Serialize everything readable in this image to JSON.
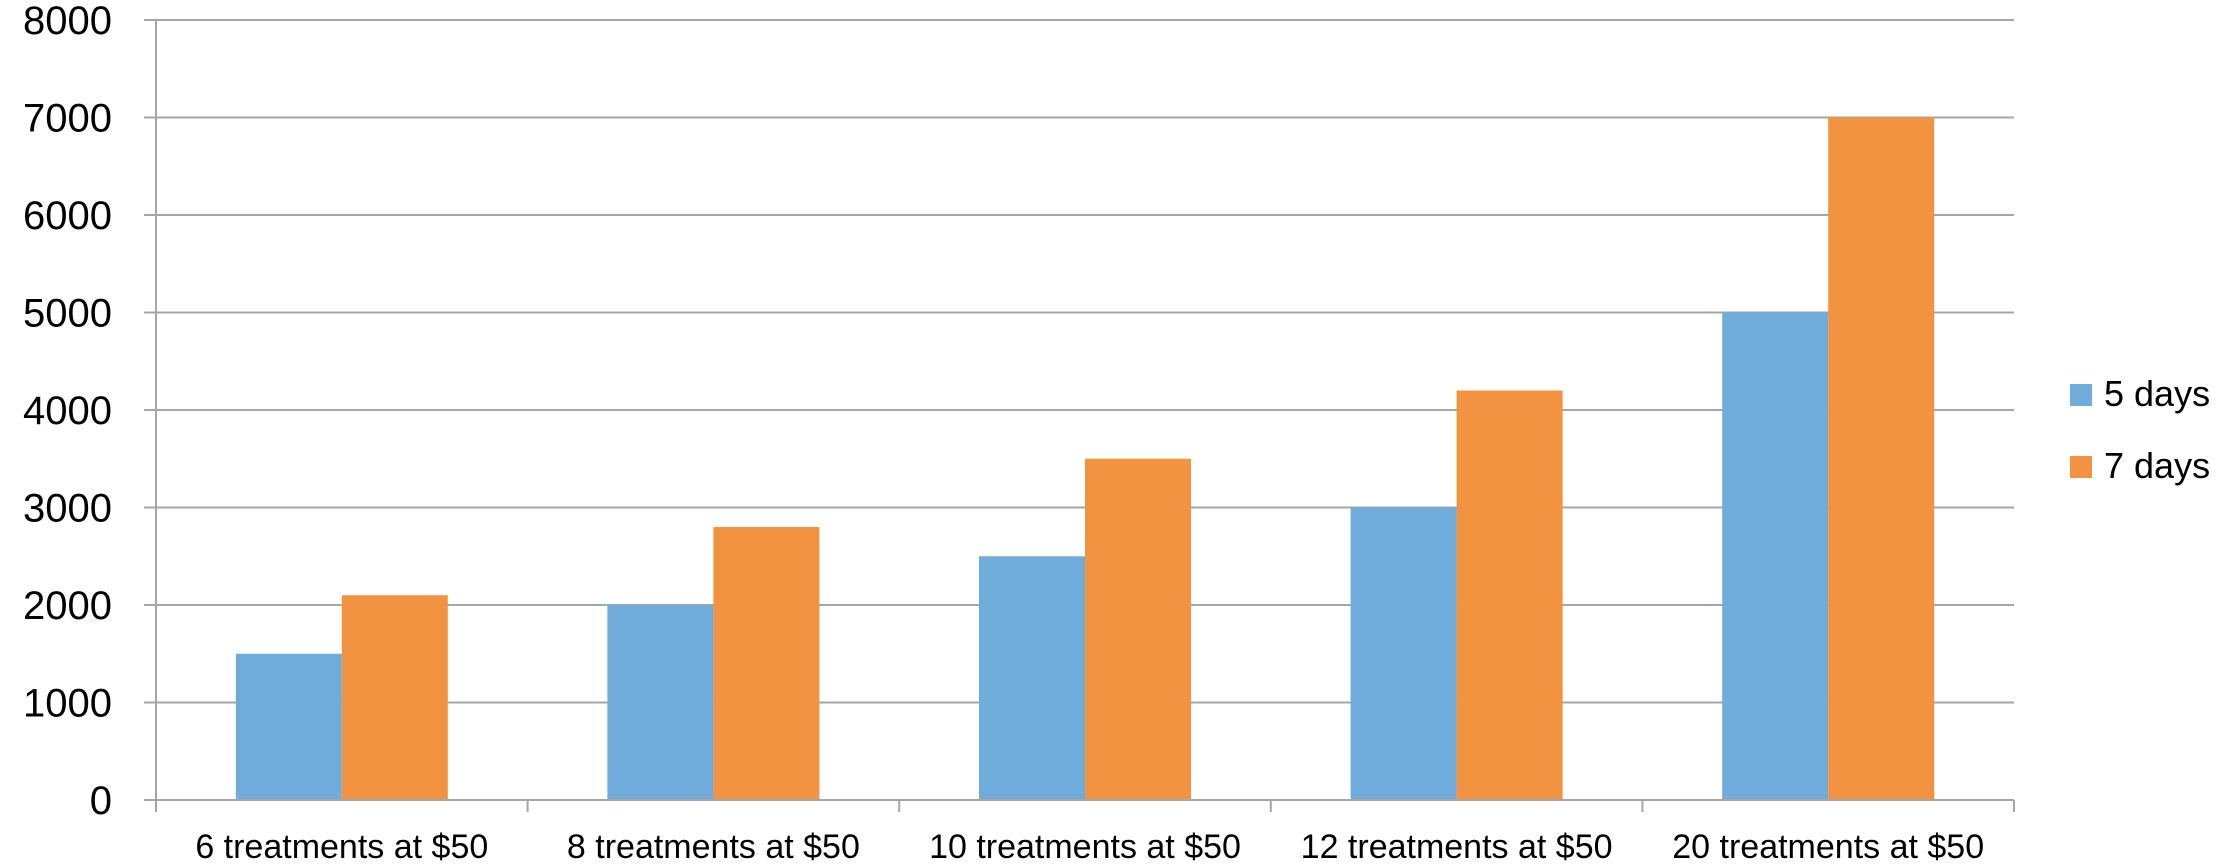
{
  "chart_data": {
    "type": "bar",
    "title": "",
    "xlabel": "",
    "ylabel": "",
    "categories": [
      "6 treatments at $50",
      "8 treatments at $50",
      "10 treatments at $50",
      "12 treatments at $50",
      "20 treatments at $50"
    ],
    "series": [
      {
        "name": "5 days",
        "values": [
          1500,
          2000,
          2500,
          3000,
          5000
        ],
        "color": "#6FACDC"
      },
      {
        "name": "7 days",
        "values": [
          2100,
          2800,
          3500,
          4200,
          7000
        ],
        "color": "#F29341"
      }
    ],
    "ylim": [
      0,
      8000
    ],
    "yticks": [
      "0",
      "1000",
      "2000",
      "3000",
      "4000",
      "5000",
      "6000",
      "7000",
      "8000"
    ],
    "grid": true,
    "legend": "right",
    "gridColor": "#A6A6A6",
    "axisColor": "#A6A6A6"
  }
}
